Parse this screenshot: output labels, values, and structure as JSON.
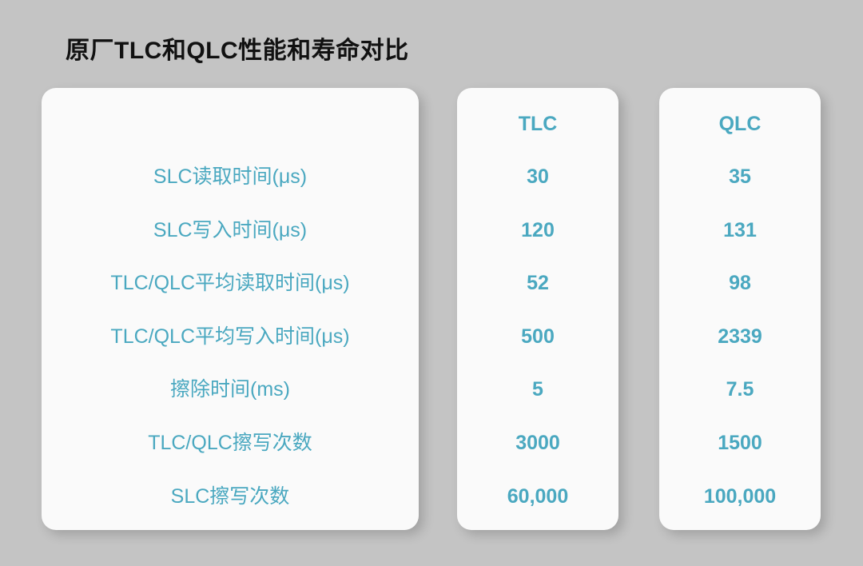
{
  "title": "原厂TLC和QLC性能和寿命对比",
  "colors": {
    "accent": "#4aa8c0",
    "background": "#c4c4c4",
    "card": "#fafafa"
  },
  "chart_data": {
    "type": "table",
    "columns": [
      "TLC",
      "QLC"
    ],
    "rows": [
      {
        "label": "SLC读取时间(μs)",
        "values": [
          "30",
          "35"
        ]
      },
      {
        "label": "SLC写入时间(μs)",
        "values": [
          "120",
          "131"
        ]
      },
      {
        "label": "TLC/QLC平均读取时间(μs)",
        "values": [
          "52",
          "98"
        ]
      },
      {
        "label": "TLC/QLC平均写入时间(μs)",
        "values": [
          "500",
          "2339"
        ]
      },
      {
        "label": "擦除时间(ms)",
        "values": [
          "5",
          "7.5"
        ]
      },
      {
        "label": "TLC/QLC擦写次数",
        "values": [
          "3000",
          "1500"
        ]
      },
      {
        "label": "SLC擦写次数",
        "values": [
          "60,000",
          "100,000"
        ]
      }
    ]
  }
}
